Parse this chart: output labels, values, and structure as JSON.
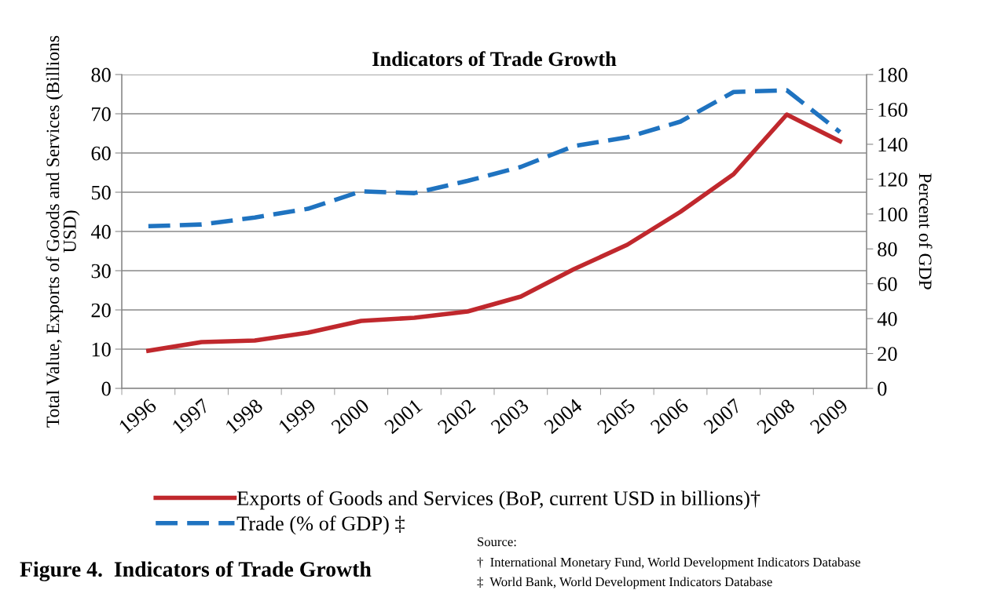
{
  "chart_data": {
    "type": "line",
    "title": "Indicators of Trade Growth",
    "ylabel": "Total Value, Exports of Goods and Services (Billions\nUSD)",
    "y2label": "Percent of GDP",
    "categories": [
      "1996",
      "1997",
      "1998",
      "1999",
      "2000",
      "2001",
      "2002",
      "2003",
      "2004",
      "2005",
      "2006",
      "2007",
      "2008",
      "2009"
    ],
    "series": [
      {
        "name": "Exports of Goods and Services (BoP, current USD in billions)†",
        "color": "#c0282d",
        "line_style": "solid",
        "values": [
          9.6,
          11.8,
          12.2,
          14.2,
          17.2,
          18,
          19.6,
          23.4,
          30.4,
          36.6,
          45,
          54.6,
          69.8,
          63
        ]
      },
      {
        "name": "Trade (% of GDP) ‡",
        "color": "#1f73c0",
        "line_style": "dashed",
        "axis": "y2",
        "values": [
          93,
          94,
          98,
          103,
          113,
          112,
          119,
          127,
          139,
          144,
          153,
          170,
          171,
          147
        ]
      }
    ],
    "ylim": [
      0,
      80
    ],
    "yticks": [
      0,
      10,
      20,
      30,
      40,
      50,
      60,
      70,
      80
    ],
    "y2lim": [
      0,
      180
    ],
    "y2ticks": [
      0,
      20,
      40,
      60,
      80,
      100,
      120,
      140,
      160,
      180
    ],
    "grid": "y",
    "legend": "bottom",
    "marker": "none",
    "annotations": [
      "Figure 4.  Indicators of Trade Growth",
      "Source:",
      "†  International Monetary Fund, World Development Indicators Database",
      "‡  World Bank, World Development Indicators Database"
    ]
  }
}
